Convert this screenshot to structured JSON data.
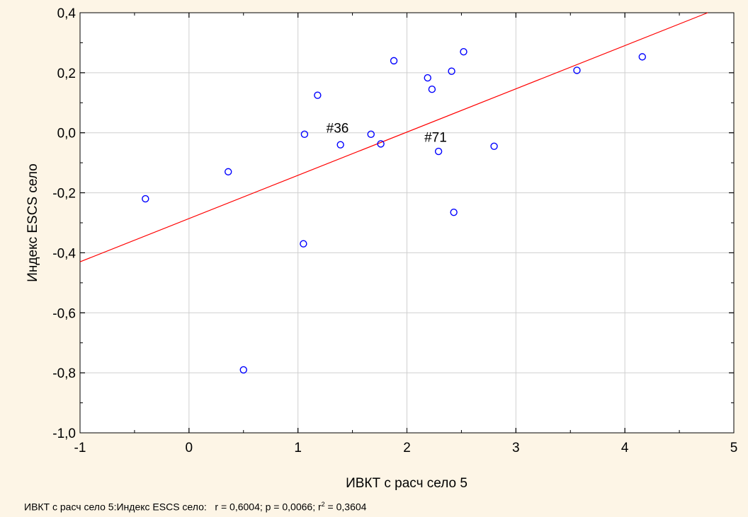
{
  "chart_data": {
    "type": "scatter",
    "xlabel": "ИВКТ с расч село 5",
    "ylabel": "Индекс ESCS село",
    "xlim": [
      -1,
      5
    ],
    "ylim": [
      -1.0,
      0.4
    ],
    "x_ticks": [
      -1,
      0,
      1,
      2,
      3,
      4,
      5
    ],
    "x_tick_labels": [
      "-1",
      "0",
      "1",
      "2",
      "3",
      "4",
      "5"
    ],
    "y_ticks": [
      -1.0,
      -0.8,
      -0.6,
      -0.4,
      -0.2,
      0.0,
      0.2,
      0.4
    ],
    "y_tick_labels": [
      "-1,0",
      "-0,8",
      "-0,6",
      "-0,4",
      "-0,2",
      "0,0",
      "0,2",
      "0,4"
    ],
    "grid": true,
    "points": [
      {
        "x": -0.4,
        "y": -0.22
      },
      {
        "x": 0.36,
        "y": -0.13
      },
      {
        "x": 0.5,
        "y": -0.79
      },
      {
        "x": 1.05,
        "y": -0.37
      },
      {
        "x": 1.06,
        "y": -0.005
      },
      {
        "x": 1.18,
        "y": 0.125
      },
      {
        "x": 1.39,
        "y": -0.04
      },
      {
        "x": 1.67,
        "y": -0.005
      },
      {
        "x": 1.76,
        "y": -0.037
      },
      {
        "x": 1.88,
        "y": 0.24
      },
      {
        "x": 2.19,
        "y": 0.183
      },
      {
        "x": 2.23,
        "y": 0.145
      },
      {
        "x": 2.29,
        "y": -0.062
      },
      {
        "x": 2.41,
        "y": 0.205
      },
      {
        "x": 2.43,
        "y": -0.265
      },
      {
        "x": 2.52,
        "y": 0.27
      },
      {
        "x": 2.8,
        "y": -0.045
      },
      {
        "x": 3.56,
        "y": 0.208
      },
      {
        "x": 4.16,
        "y": 0.253
      }
    ],
    "point_color": "#0000ff",
    "regression_line": {
      "x": [
        -1,
        4.76
      ],
      "y": [
        -0.43,
        0.4
      ],
      "color": "#ff0000"
    },
    "annotations": [
      {
        "text": "#36",
        "x": 1.26,
        "y": 0.0
      },
      {
        "text": "#71",
        "x": 2.16,
        "y": -0.03
      }
    ],
    "stats_caption": "ИВКТ с расч село 5:Индекс ESCS село:   r = 0,6004; p = 0,0066; r",
    "stats_caption_sup": "2",
    "stats_caption_tail": " = 0,3604"
  }
}
